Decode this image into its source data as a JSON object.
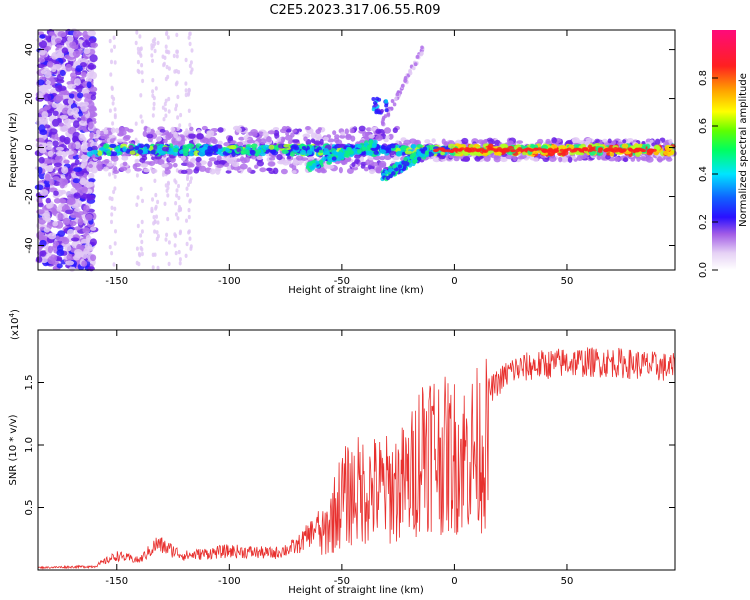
{
  "title": "C2E5.2023.317.06.55.R09",
  "chart_data": [
    {
      "type": "heatmap",
      "xlabel": "Height of straight line (km)",
      "ylabel": "Frequency (Hz)",
      "xlim": [
        -185,
        98
      ],
      "ylim": [
        -50,
        48
      ],
      "xticks": [
        -150,
        -100,
        -50,
        0,
        50
      ],
      "yticks": [
        -40,
        -20,
        0,
        20,
        40
      ],
      "colorbar": {
        "label": "Normalized spectral amplitude",
        "range": [
          0,
          1
        ],
        "ticks": [
          "0.0",
          "0.2",
          "0.4",
          "0.6",
          "0.8"
        ]
      },
      "features": {
        "noise_band_x": [
          -185,
          -160
        ],
        "main_line_freq_hz": -3,
        "main_line_x": [
          -162,
          98
        ],
        "branch_x": [
          -32,
          -12
        ],
        "branch_freq_hz": [
          -12,
          18
        ]
      }
    },
    {
      "type": "line",
      "xlabel": "Height of straight line (km)",
      "ylabel": "SNR (10 * v/v)",
      "scale_note": "(x10",
      "scale_exp": "4",
      "scale_close": ")",
      "xlim": [
        -185,
        98
      ],
      "ylim": [
        0,
        1.92
      ],
      "xticks": [
        -150,
        -100,
        -50,
        0,
        50
      ],
      "yticks": [
        0.5,
        1.0,
        1.5
      ],
      "ytick_labels": [
        "0.5",
        "1.0",
        "1.5"
      ],
      "color": "#e8302e",
      "envelope": [
        [
          -185,
          0.02
        ],
        [
          -160,
          0.03
        ],
        [
          -150,
          0.12
        ],
        [
          -140,
          0.08
        ],
        [
          -132,
          0.22
        ],
        [
          -120,
          0.12
        ],
        [
          -100,
          0.16
        ],
        [
          -80,
          0.14
        ],
        [
          -70,
          0.2
        ],
        [
          -58,
          0.42
        ],
        [
          -50,
          0.85
        ],
        [
          -42,
          0.95
        ],
        [
          -30,
          0.95
        ],
        [
          -20,
          1.05
        ],
        [
          -13,
          1.55
        ],
        [
          -5,
          1.35
        ],
        [
          5,
          1.35
        ],
        [
          15,
          1.5
        ],
        [
          25,
          1.68
        ],
        [
          35,
          1.72
        ],
        [
          50,
          1.75
        ],
        [
          70,
          1.75
        ],
        [
          98,
          1.7
        ]
      ]
    }
  ]
}
